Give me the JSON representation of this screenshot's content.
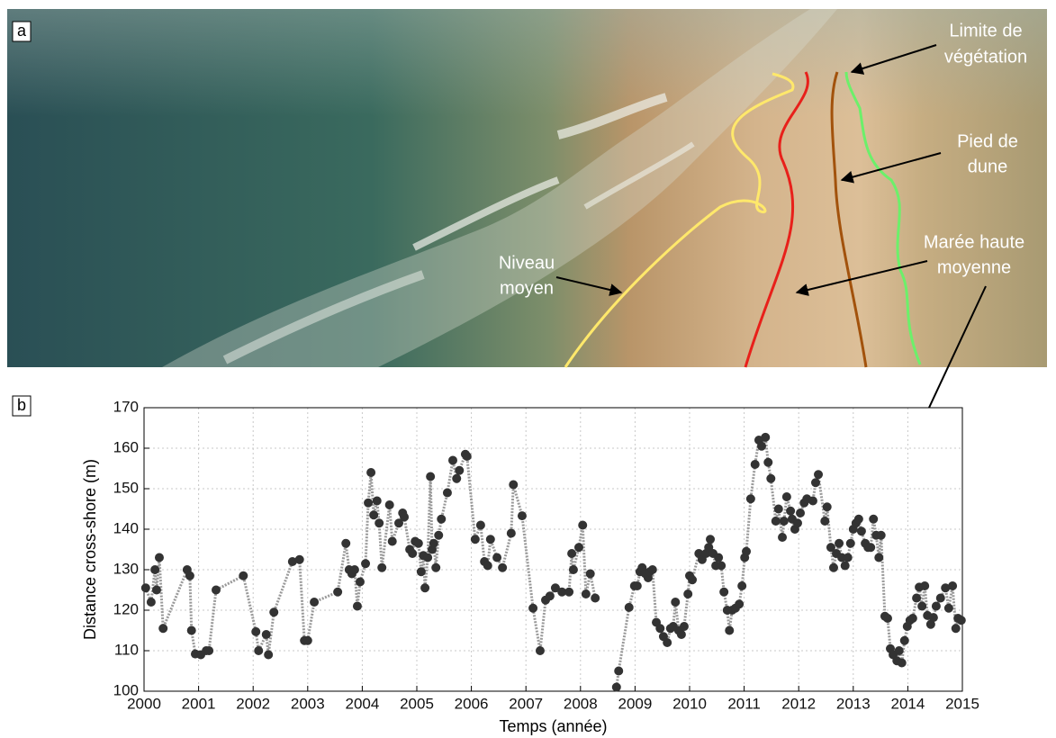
{
  "photo": {
    "label": "a",
    "annotations": [
      {
        "lines": [
          "Limite de",
          "végétation"
        ]
      },
      {
        "lines": [
          "Pied de",
          "dune"
        ]
      },
      {
        "lines": [
          "Marée haute",
          "moyenne"
        ]
      },
      {
        "lines": [
          "Niveau",
          "moyen"
        ]
      }
    ]
  },
  "chart_data": {
    "type": "line",
    "panel_label": "b",
    "xlabel": "Temps (année)",
    "ylabel": "Distance cross-shore (m)",
    "color": "#9a9a9a",
    "marker_color": "#333333",
    "grid": true,
    "xlim": [
      2000,
      2015
    ],
    "ylim": [
      100,
      170
    ],
    "xticks": [
      2000,
      2001,
      2002,
      2003,
      2004,
      2005,
      2006,
      2007,
      2008,
      2009,
      2010,
      2011,
      2012,
      2013,
      2014,
      2015
    ],
    "yticks": [
      100,
      110,
      120,
      130,
      140,
      150,
      160,
      170
    ],
    "x": [
      2000.03,
      2000.13,
      2000.2,
      2000.23,
      2000.28,
      2000.35,
      2000.79,
      2000.84,
      2000.87,
      2000.94,
      2001.04,
      2001.14,
      2001.19,
      2001.32,
      2001.82,
      2002.05,
      2002.1,
      2002.24,
      2002.28,
      2002.38,
      2002.72,
      2002.85,
      2002.94,
      2003.0,
      2003.12,
      2003.55,
      2003.7,
      2003.76,
      2003.81,
      2003.86,
      2003.91,
      2003.96,
      2004.06,
      2004.11,
      2004.16,
      2004.21,
      2004.27,
      2004.31,
      2004.36,
      2004.5,
      2004.55,
      2004.67,
      2004.74,
      2004.77,
      2004.87,
      2004.92,
      2004.97,
      2005.03,
      2005.08,
      2005.12,
      2005.15,
      2005.2,
      2005.25,
      2005.28,
      2005.31,
      2005.35,
      2005.4,
      2005.45,
      2005.56,
      2005.66,
      2005.73,
      2005.78,
      2005.89,
      2005.92,
      2006.07,
      2006.17,
      2006.24,
      2006.3,
      2006.35,
      2006.47,
      2006.57,
      2006.73,
      2006.77,
      2006.93,
      2007.13,
      2007.26,
      2007.36,
      2007.44,
      2007.54,
      2007.66,
      2007.79,
      2007.84,
      2007.87,
      2007.97,
      2008.04,
      2008.1,
      2008.18,
      2008.27,
      2008.5,
      2008.66,
      2008.7,
      2008.89,
      2008.99,
      2009.04,
      2009.09,
      2009.13,
      2009.19,
      2009.24,
      2009.27,
      2009.32,
      2009.39,
      2009.46,
      2009.52,
      2009.59,
      2009.65,
      2009.7,
      2009.74,
      2009.8,
      2009.85,
      2009.9,
      2009.97,
      2010.0,
      2010.05,
      2010.17,
      2010.23,
      2010.3,
      2010.35,
      2010.38,
      2010.43,
      2010.48,
      2010.53,
      2010.58,
      2010.63,
      2010.69,
      2010.73,
      2010.78,
      2010.84,
      2010.91,
      2010.96,
      2011.01,
      2011.04,
      2011.12,
      2011.2,
      2011.27,
      2011.32,
      2011.39,
      2011.44,
      2011.49,
      2011.58,
      2011.63,
      2011.7,
      2011.73,
      2011.78,
      2011.85,
      2011.88,
      2011.93,
      2011.98,
      2012.03,
      2012.1,
      2012.15,
      2012.26,
      2012.31,
      2012.36,
      2012.48,
      2012.52,
      2012.59,
      2012.64,
      2012.69,
      2012.74,
      2012.79,
      2012.85,
      2012.9,
      2012.95,
      2013.0,
      2013.05,
      2013.1,
      2013.15,
      2013.22,
      2013.27,
      2013.32,
      2013.37,
      2013.42,
      2013.47,
      2013.51,
      2013.58,
      2013.63,
      2013.68,
      2013.73,
      2013.8,
      2013.84,
      2013.89,
      2013.94,
      2013.99,
      2014.04,
      2014.09,
      2014.16,
      2014.21,
      2014.26,
      2014.31,
      2014.36,
      2014.42,
      2014.47,
      2014.52,
      2014.6,
      2014.69,
      2014.75,
      2014.82,
      2014.88,
      2014.92,
      2014.98
    ],
    "values": [
      125.5,
      122,
      130,
      125,
      133,
      115.5,
      130,
      128.5,
      115,
      109.2,
      109,
      110,
      110,
      125,
      128.5,
      114.7,
      110,
      114,
      109,
      119.5,
      132,
      132.5,
      112.5,
      112.5,
      122,
      124.5,
      136.5,
      130,
      129,
      130,
      121,
      127,
      131.5,
      146.5,
      154,
      143.5,
      147,
      141.5,
      130.5,
      146,
      137,
      141.5,
      144,
      143,
      135,
      134,
      137,
      136.5,
      129.5,
      133.5,
      125.5,
      133,
      153,
      135,
      136.5,
      130.5,
      138.5,
      142.5,
      149,
      157,
      152.5,
      154.5,
      158.5,
      158,
      137.5,
      141,
      132,
      131,
      137.5,
      133,
      130.5,
      139,
      151,
      143.3,
      120.5,
      110,
      122.5,
      123.5,
      125.5,
      124.5,
      124.5,
      134,
      130,
      135.5,
      141,
      124,
      129,
      123,
      null,
      101,
      105,
      120.7,
      126,
      126,
      129.5,
      130.5,
      129,
      128,
      129.5,
      130,
      117,
      115.5,
      113.5,
      112,
      115.5,
      116,
      122,
      115,
      114,
      116,
      124,
      128.5,
      127.5,
      134,
      132.5,
      134,
      135.5,
      137.5,
      134,
      131,
      133,
      131,
      124.5,
      120,
      115,
      120,
      120.5,
      121.5,
      126,
      133,
      134.5,
      147.5,
      156,
      162,
      160.5,
      162.7,
      156.5,
      152.5,
      142,
      145,
      138,
      142,
      148,
      144.5,
      142.5,
      140,
      141.5,
      144,
      146.5,
      147.5,
      147,
      151.5,
      153.5,
      142,
      145.5,
      135.5,
      130.5,
      134,
      136.5,
      133,
      131,
      133,
      136.5,
      140,
      141.5,
      142.5,
      139.5,
      136.5,
      135.5,
      135.5,
      142.5,
      138.5,
      133,
      138.5,
      118.5,
      118,
      110.5,
      109,
      107.5,
      110,
      107,
      112.5,
      116,
      117.5,
      118,
      123,
      125.7,
      121,
      126,
      118.7,
      116.5,
      118.2,
      121,
      123,
      125.5,
      120.5,
      126,
      115.5,
      118,
      117.5
    ]
  }
}
